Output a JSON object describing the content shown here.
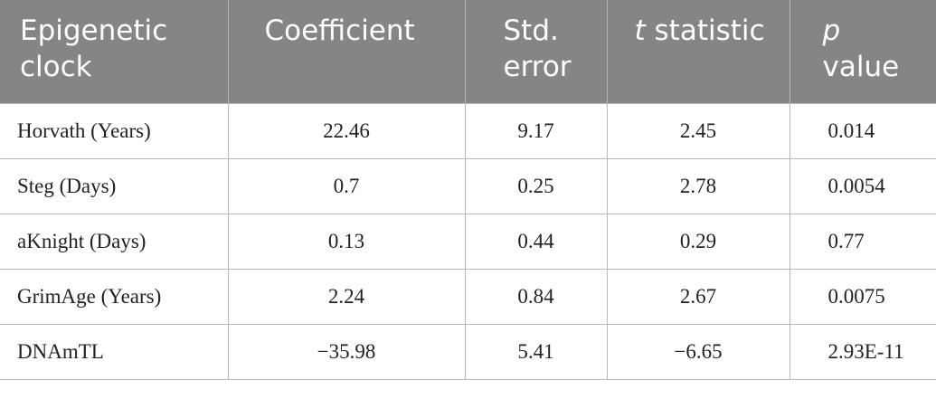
{
  "table": {
    "headers": {
      "clock_line1": "Epigenetic",
      "clock_line2": "clock",
      "coefficient": "Coefficient",
      "se_line1": "Std.",
      "se_line2": "error",
      "t_italic": "t",
      "t_rest": " statistic",
      "p_italic": "p",
      "p_line2": "value"
    },
    "rows": [
      {
        "clock": "Horvath (Years)",
        "coefficient": "22.46",
        "std_error": "9.17",
        "t_statistic": "2.45",
        "p_value": "0.014"
      },
      {
        "clock": "Steg (Days)",
        "coefficient": "0.7",
        "std_error": "0.25",
        "t_statistic": "2.78",
        "p_value": "0.0054"
      },
      {
        "clock": "aKnight (Days)",
        "coefficient": "0.13",
        "std_error": "0.44",
        "t_statistic": "0.29",
        "p_value": "0.77"
      },
      {
        "clock": "GrimAge (Years)",
        "coefficient": "2.24",
        "std_error": "0.84",
        "t_statistic": "2.67",
        "p_value": "0.0075"
      },
      {
        "clock": "DNAmTL",
        "coefficient": "−35.98",
        "std_error": "5.41",
        "t_statistic": "−6.65",
        "p_value": "2.93E-11"
      }
    ]
  },
  "colors": {
    "header_background": "#858585",
    "header_text": "#ffffff",
    "grid_lines": "#b8b8b8"
  }
}
